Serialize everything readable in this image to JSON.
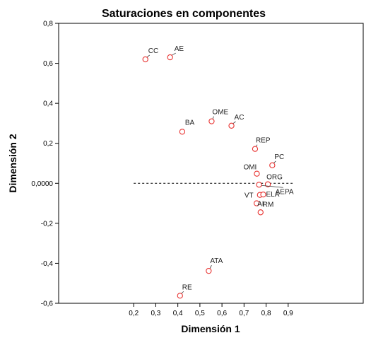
{
  "chart_data": {
    "type": "scatter",
    "title": "Saturaciones en componentes",
    "xlabel": "Dimensión 1",
    "ylabel": "Dimensión 2",
    "xlim": [
      -0.14,
      1.24
    ],
    "ylim": [
      -0.6,
      0.8
    ],
    "x_ticks": [
      {
        "value": 0.2,
        "label": "0,2"
      },
      {
        "value": 0.3,
        "label": "0,3"
      },
      {
        "value": 0.4,
        "label": "0,4"
      },
      {
        "value": 0.5,
        "label": "0,5"
      },
      {
        "value": 0.6,
        "label": "0,6"
      },
      {
        "value": 0.7,
        "label": "0,7"
      },
      {
        "value": 0.8,
        "label": "0,8"
      },
      {
        "value": 0.9,
        "label": "0,9"
      }
    ],
    "y_ticks": [
      {
        "value": 0.8,
        "label": "0,8"
      },
      {
        "value": 0.6,
        "label": "0,6"
      },
      {
        "value": 0.4,
        "label": "0,4"
      },
      {
        "value": 0.2,
        "label": "0,2"
      },
      {
        "value": 0.0,
        "label": "0,0000"
      },
      {
        "value": -0.2,
        "label": "-0,2"
      },
      {
        "value": -0.4,
        "label": "-0,4"
      },
      {
        "value": -0.6,
        "label": "-0,6"
      }
    ],
    "reference_line": {
      "y": 0.0,
      "x_from": 0.2,
      "x_to": 0.92,
      "style": "dashed"
    },
    "grid": false,
    "marker_color": "#e8312f",
    "points": [
      {
        "label": "CC",
        "x": 0.253,
        "y": 0.62
      },
      {
        "label": "AE",
        "x": 0.365,
        "y": 0.63
      },
      {
        "label": "BA",
        "x": 0.42,
        "y": 0.258
      },
      {
        "label": "OME",
        "x": 0.553,
        "y": 0.31
      },
      {
        "label": "AC",
        "x": 0.643,
        "y": 0.288
      },
      {
        "label": "REP",
        "x": 0.75,
        "y": 0.172
      },
      {
        "label": "PC",
        "x": 0.828,
        "y": 0.09
      },
      {
        "label": "OMI",
        "x": 0.758,
        "y": 0.048
      },
      {
        "label": "ORG",
        "x": 0.808,
        "y": -0.005
      },
      {
        "label": "AEPA",
        "x": 0.768,
        "y": -0.007
      },
      {
        "label": "VT",
        "x": 0.772,
        "y": -0.058
      },
      {
        "label": "ELA",
        "x": 0.787,
        "y": -0.056
      },
      {
        "label": "AI",
        "x": 0.757,
        "y": -0.1
      },
      {
        "label": "RM",
        "x": 0.775,
        "y": -0.145
      },
      {
        "label": "ATA",
        "x": 0.54,
        "y": -0.438
      },
      {
        "label": "RE",
        "x": 0.41,
        "y": -0.562
      }
    ]
  }
}
